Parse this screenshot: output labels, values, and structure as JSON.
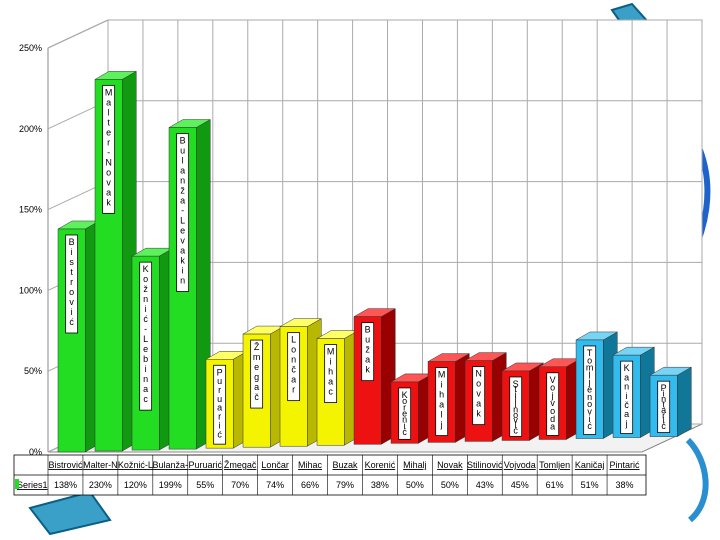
{
  "chart_data": {
    "type": "bar",
    "ylim": [
      0,
      250
    ],
    "y_ticks": [
      "0%",
      "50%",
      "100%",
      "150%",
      "200%",
      "250%"
    ],
    "grid": true,
    "series_name": "Series1",
    "colors": {
      "green": "#22dd22",
      "yellow": "#f0f000",
      "red": "#ee1111",
      "blue": "#33bbee"
    },
    "bars": [
      {
        "category": "Bistrović",
        "value": 138,
        "value_label": "138%",
        "bar_label": "Bistrović",
        "color": "green"
      },
      {
        "category": "Malter-N",
        "value": 230,
        "value_label": "230%",
        "bar_label": "Malter-Novak",
        "color": "green"
      },
      {
        "category": "Kožnić-L",
        "value": 120,
        "value_label": "120%",
        "bar_label": "Kožnić-Lebinac",
        "color": "green"
      },
      {
        "category": "Bulanža-",
        "value": 199,
        "value_label": "199%",
        "bar_label": "Bulanža-Levakin",
        "color": "green"
      },
      {
        "category": "Puruarić",
        "value": 55,
        "value_label": "55%",
        "bar_label": "Puruarić",
        "color": "yellow"
      },
      {
        "category": "Žmegač",
        "value": 70,
        "value_label": "70%",
        "bar_label": "Žmegač",
        "color": "yellow"
      },
      {
        "category": "Lončar",
        "value": 74,
        "value_label": "74%",
        "bar_label": "Lončar",
        "color": "yellow"
      },
      {
        "category": "Mihac",
        "value": 66,
        "value_label": "66%",
        "bar_label": "Mihac",
        "color": "yellow"
      },
      {
        "category": "Buzak",
        "value": 79,
        "value_label": "79%",
        "bar_label": "Bužak",
        "color": "red"
      },
      {
        "category": "Korenić",
        "value": 38,
        "value_label": "38%",
        "bar_label": "Korenić",
        "color": "red"
      },
      {
        "category": "Mihalj",
        "value": 50,
        "value_label": "50%",
        "bar_label": "Mihalj",
        "color": "red"
      },
      {
        "category": "Novak",
        "value": 50,
        "value_label": "50%",
        "bar_label": "Novak",
        "color": "red"
      },
      {
        "category": "Stilinović",
        "value": 43,
        "value_label": "43%",
        "bar_label": "Stilinović",
        "color": "red"
      },
      {
        "category": "Vojvoda",
        "value": 45,
        "value_label": "45%",
        "bar_label": "Vojvoda",
        "color": "red"
      },
      {
        "category": "Tomljen",
        "value": 61,
        "value_label": "61%",
        "bar_label": "Tomljenović",
        "color": "blue"
      },
      {
        "category": "Kaničaj",
        "value": 51,
        "value_label": "51%",
        "bar_label": "Kaničaj",
        "color": "blue"
      },
      {
        "category": "Pintarić",
        "value": 38,
        "value_label": "38%",
        "bar_label": "Pintarić",
        "color": "blue"
      }
    ]
  }
}
